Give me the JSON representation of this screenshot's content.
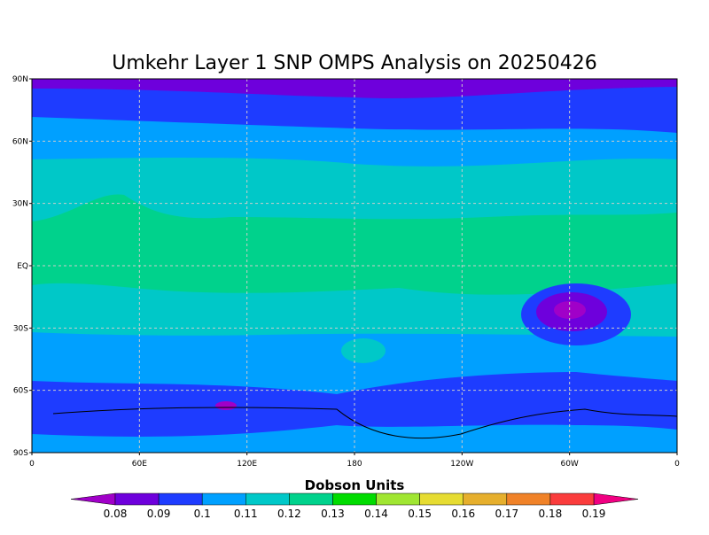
{
  "title": "Umkehr Layer 1 SNP OMPS Analysis on 20250426",
  "map": {
    "lat_ticks": [
      "90N",
      "60N",
      "30N",
      "EQ",
      "30S",
      "60S",
      "90S"
    ],
    "lon_ticks": [
      "0",
      "60E",
      "120E",
      "180",
      "120W",
      "60W",
      "0"
    ]
  },
  "colorbar": {
    "label": "Dobson Units",
    "levels": [
      0.08,
      0.09,
      0.1,
      0.11,
      0.12,
      0.13,
      0.14,
      0.15,
      0.16,
      0.17,
      0.18,
      0.19
    ],
    "colors": [
      "#a000c8",
      "#6e00dc",
      "#1e3cff",
      "#00a0ff",
      "#00c8c8",
      "#00d28c",
      "#00dc00",
      "#a0e632",
      "#e6dc32",
      "#e6af2d",
      "#f08228",
      "#fa3c3c",
      "#f00082"
    ]
  }
}
